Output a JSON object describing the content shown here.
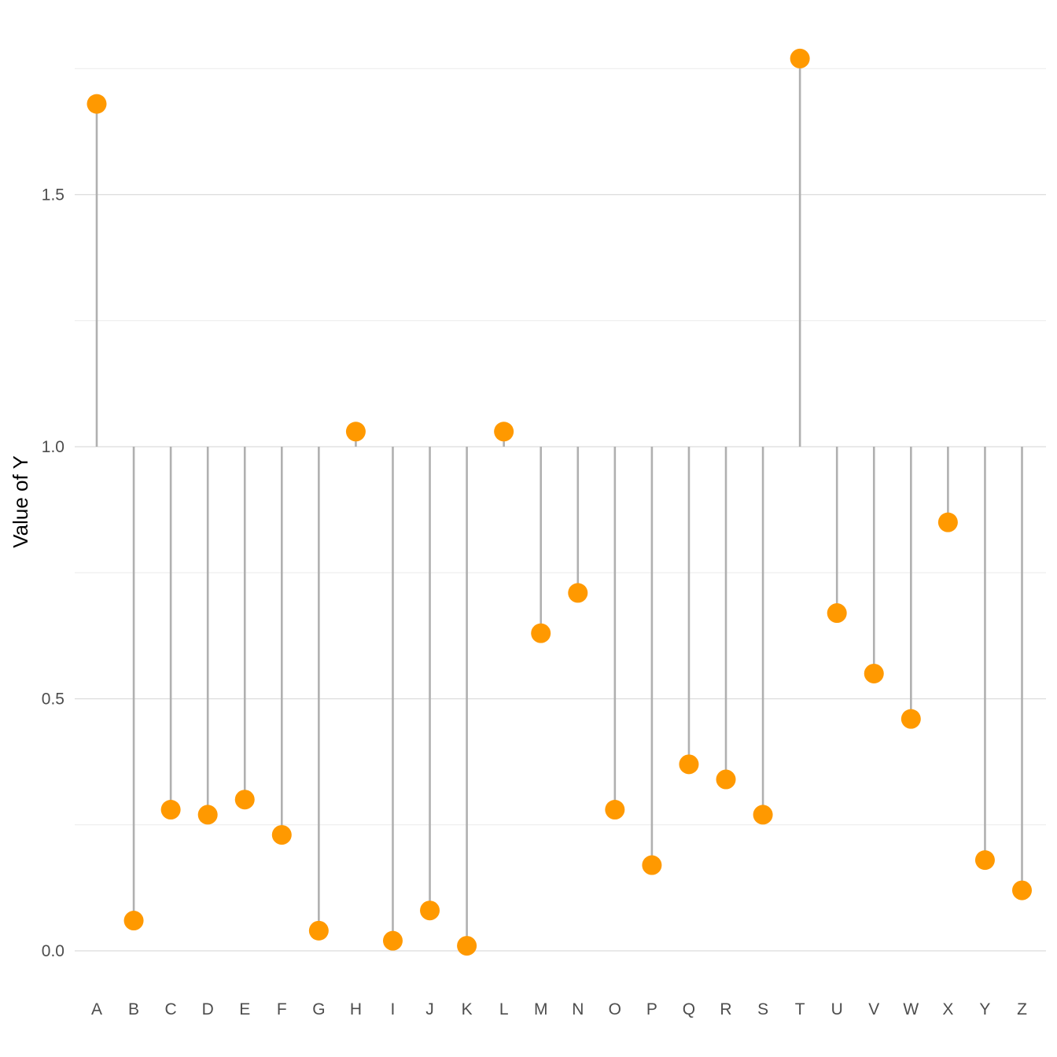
{
  "chart_data": {
    "type": "lollipop",
    "title": "",
    "xlabel": "",
    "ylabel": "Value of Y",
    "baseline": 1.0,
    "ylim": [
      -0.0927,
      1.8825
    ],
    "yticks": [
      0.0,
      0.5,
      1.0,
      1.5
    ],
    "ytick_labels": [
      "0.0",
      "0.5",
      "1.0",
      "1.5"
    ],
    "minor_gridlines": [
      0.25,
      0.75,
      1.25,
      1.75
    ],
    "grid": true,
    "legend": "none",
    "categories": [
      "A",
      "B",
      "C",
      "D",
      "E",
      "F",
      "G",
      "H",
      "I",
      "J",
      "K",
      "L",
      "M",
      "N",
      "O",
      "P",
      "Q",
      "R",
      "S",
      "T",
      "U",
      "V",
      "W",
      "X",
      "Y",
      "Z"
    ],
    "values": [
      1.68,
      0.06,
      0.28,
      0.27,
      0.3,
      0.23,
      0.04,
      1.03,
      0.02,
      0.08,
      0.01,
      1.03,
      0.63,
      0.71,
      0.28,
      0.17,
      0.37,
      0.34,
      0.27,
      1.77,
      0.67,
      0.55,
      0.46,
      0.85,
      0.18,
      0.12
    ]
  },
  "colors": {
    "point": "#FF9900",
    "stem": "#B0B0B0",
    "grid_major": "#DCDCDC",
    "grid_minor": "#EBEBEB",
    "tick_text": "#4D4D4D",
    "axis_title": "#000000"
  }
}
